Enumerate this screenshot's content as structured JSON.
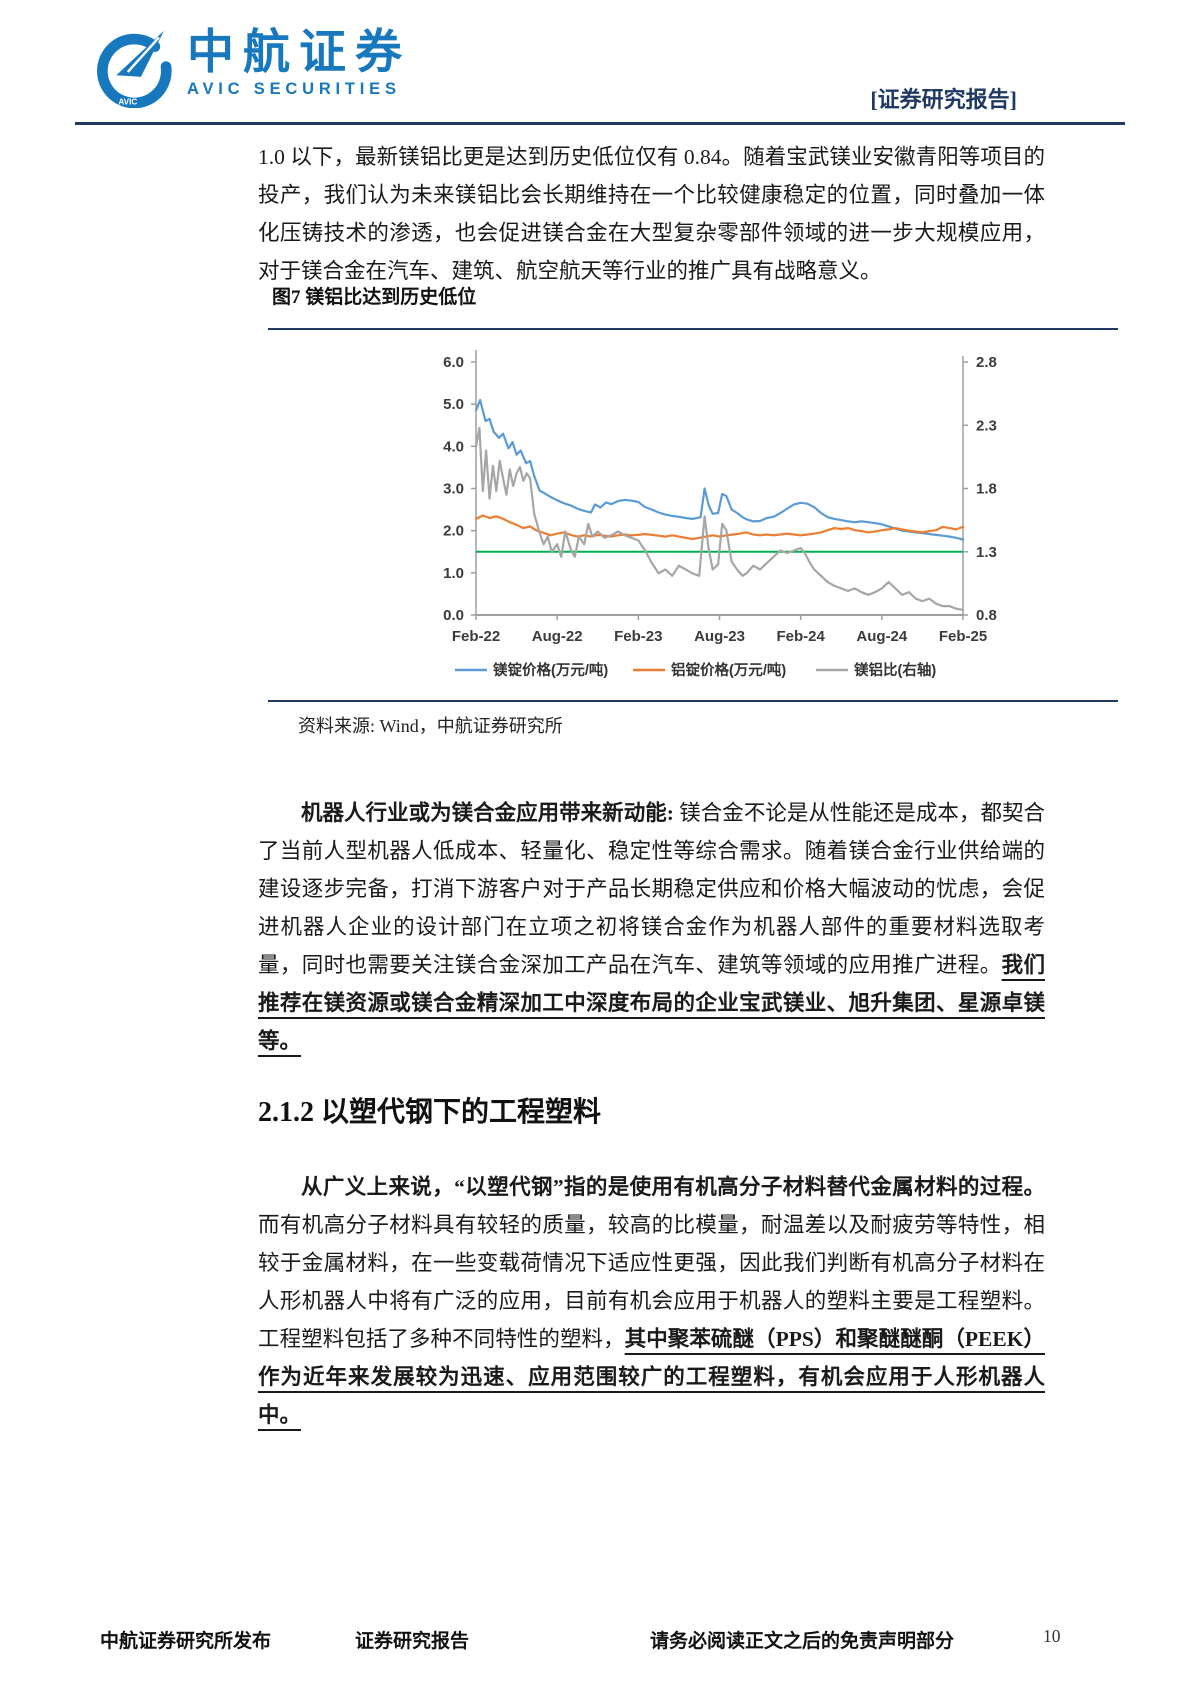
{
  "header": {
    "logo": {
      "cn": "中航证券",
      "en": "AVIC  SECURITIES",
      "badge": "AVIC"
    },
    "report_tag": "[证券研究报告]"
  },
  "colors": {
    "navy": "#1F3864",
    "logo_blue": "#1878BE"
  },
  "paragraphs": {
    "p1": "1.0 以下，最新镁铝比更是达到历史低位仅有 0.84。随着宝武镁业安徽青阳等项目的投产，我们认为未来镁铝比会长期维持在一个比较健康稳定的位置，同时叠加一体化压铸技术的渗透，也会促进镁合金在大型复杂零部件领域的进一步大规模应用，对于镁合金在汽车、建筑、航空航天等行业的推广具有战略意义。",
    "p2_bold_lead": "机器人行业或为镁合金应用带来新动能:",
    "p2_body": " 镁合金不论是从性能还是成本，都契合了当前人型机器人低成本、轻量化、稳定性等综合需求。随着镁合金行业供给端的建设逐步完备，打消下游客户对于产品长期稳定供应和价格大幅波动的忧虑，会促进机器人企业的设计部门在立项之初将镁合金作为机器人部件的重要材料选取考量，同时也需要关注镁合金深加工产品在汽车、建筑等领域的应用推广进程。",
    "p2_bold_underline": "我们推荐在镁资源或镁合金精深加工中深度布局的企业宝武镁业、旭升集团、星源卓镁等。",
    "p3_bold_lead": "从广义上来说，“以塑代钢”指的是使用有机高分子材料替代金属材料的过程。",
    "p3_body": "而有机高分子材料具有较轻的质量，较高的比模量，耐温差以及耐疲劳等特性，相较于金属材料，在一些变载荷情况下适应性更强，因此我们判断有机高分子材料在人形机器人中将有广泛的应用，目前有机会应用于机器人的塑料主要是工程塑料。工程塑料包括了多种不同特性的塑料，",
    "p3_bold_underline": "其中聚苯硫醚（PPS）和聚醚醚酮（PEEK）作为近年来发展较为迅速、应用范围较广的工程塑料，有机会应用于人形机器人中。"
  },
  "section": {
    "heading": "2.1.2 以塑代钢下的工程塑料"
  },
  "figure": {
    "caption": "图7 镁铝比达到历史低位",
    "source": "资料来源: Wind，中航证券研究所"
  },
  "chart_data": {
    "type": "line",
    "title": "图7 镁铝比达到历史低位",
    "x_tick_labels": [
      "Feb-22",
      "Aug-22",
      "Feb-23",
      "Aug-23",
      "Feb-24",
      "Aug-24",
      "Feb-25"
    ],
    "x_range_months": [
      0,
      36
    ],
    "left_axis": {
      "min": 0.0,
      "max": 6.0,
      "ticks": [
        "6.0",
        "5.0",
        "4.0",
        "3.0",
        "2.0",
        "1.0",
        "0.0"
      ]
    },
    "right_axis": {
      "min": 0.8,
      "max": 2.8,
      "ticks": [
        "2.8",
        "2.3",
        "1.8",
        "1.3",
        "0.8"
      ]
    },
    "reference_line": {
      "axis": "right",
      "value": 1.3,
      "color": "#00B050"
    },
    "grid": false,
    "legend_position": "bottom",
    "series": [
      {
        "name": "镁锭价格(万元/吨)",
        "axis": "left",
        "color": "#5B9BD5",
        "points": [
          [
            0,
            4.85
          ],
          [
            0.3,
            5.1
          ],
          [
            0.7,
            4.6
          ],
          [
            1,
            4.65
          ],
          [
            1.3,
            4.35
          ],
          [
            1.7,
            4.2
          ],
          [
            2,
            4.3
          ],
          [
            2.4,
            3.95
          ],
          [
            2.7,
            4.1
          ],
          [
            3,
            3.8
          ],
          [
            3.3,
            3.9
          ],
          [
            3.7,
            3.6
          ],
          [
            4,
            3.65
          ],
          [
            4.3,
            3.3
          ],
          [
            4.7,
            2.95
          ],
          [
            5,
            2.9
          ],
          [
            5.4,
            2.82
          ],
          [
            6,
            2.72
          ],
          [
            6.5,
            2.65
          ],
          [
            7,
            2.6
          ],
          [
            7.5,
            2.52
          ],
          [
            8,
            2.47
          ],
          [
            8.5,
            2.43
          ],
          [
            8.8,
            2.62
          ],
          [
            9.2,
            2.55
          ],
          [
            9.6,
            2.67
          ],
          [
            10,
            2.63
          ],
          [
            10.5,
            2.7
          ],
          [
            11,
            2.73
          ],
          [
            11.5,
            2.71
          ],
          [
            12,
            2.68
          ],
          [
            12.5,
            2.56
          ],
          [
            13,
            2.5
          ],
          [
            13.5,
            2.43
          ],
          [
            14,
            2.38
          ],
          [
            14.5,
            2.35
          ],
          [
            15,
            2.33
          ],
          [
            15.5,
            2.3
          ],
          [
            16,
            2.28
          ],
          [
            16.6,
            2.32
          ],
          [
            16.9,
            3.0
          ],
          [
            17.2,
            2.6
          ],
          [
            17.5,
            2.4
          ],
          [
            17.9,
            2.42
          ],
          [
            18.2,
            2.87
          ],
          [
            18.5,
            2.82
          ],
          [
            18.9,
            2.5
          ],
          [
            19.3,
            2.42
          ],
          [
            19.7,
            2.32
          ],
          [
            20,
            2.27
          ],
          [
            20.5,
            2.22
          ],
          [
            21,
            2.23
          ],
          [
            21.5,
            2.3
          ],
          [
            22,
            2.33
          ],
          [
            22.5,
            2.42
          ],
          [
            23,
            2.52
          ],
          [
            23.5,
            2.62
          ],
          [
            24,
            2.66
          ],
          [
            24.5,
            2.64
          ],
          [
            25,
            2.56
          ],
          [
            25.5,
            2.42
          ],
          [
            26,
            2.32
          ],
          [
            26.5,
            2.28
          ],
          [
            27,
            2.25
          ],
          [
            27.5,
            2.22
          ],
          [
            28,
            2.2
          ],
          [
            28.5,
            2.22
          ],
          [
            29,
            2.2
          ],
          [
            29.5,
            2.18
          ],
          [
            30,
            2.15
          ],
          [
            30.5,
            2.1
          ],
          [
            31,
            2.05
          ],
          [
            31.5,
            2.0
          ],
          [
            32,
            1.98
          ],
          [
            32.5,
            1.96
          ],
          [
            33,
            1.94
          ],
          [
            33.5,
            1.92
          ],
          [
            34,
            1.9
          ],
          [
            34.5,
            1.88
          ],
          [
            35,
            1.86
          ],
          [
            35.5,
            1.83
          ],
          [
            36,
            1.79
          ]
        ]
      },
      {
        "name": "铝锭价格(万元/吨)",
        "axis": "left",
        "color": "#ED7D31",
        "points": [
          [
            0,
            2.28
          ],
          [
            0.5,
            2.36
          ],
          [
            1,
            2.3
          ],
          [
            1.5,
            2.34
          ],
          [
            2,
            2.28
          ],
          [
            2.5,
            2.2
          ],
          [
            3,
            2.14
          ],
          [
            3.5,
            2.06
          ],
          [
            4,
            2.1
          ],
          [
            4.5,
            2.0
          ],
          [
            5,
            1.95
          ],
          [
            5.5,
            1.89
          ],
          [
            6,
            1.93
          ],
          [
            6.5,
            1.96
          ],
          [
            7,
            1.9
          ],
          [
            7.5,
            1.86
          ],
          [
            8,
            1.89
          ],
          [
            8.5,
            1.86
          ],
          [
            9,
            1.9
          ],
          [
            9.5,
            1.88
          ],
          [
            10,
            1.86
          ],
          [
            10.5,
            1.89
          ],
          [
            11,
            1.91
          ],
          [
            11.5,
            1.89
          ],
          [
            12,
            1.9
          ],
          [
            12.5,
            1.92
          ],
          [
            13,
            1.9
          ],
          [
            13.5,
            1.88
          ],
          [
            14,
            1.86
          ],
          [
            14.5,
            1.89
          ],
          [
            15,
            1.86
          ],
          [
            15.5,
            1.83
          ],
          [
            16,
            1.8
          ],
          [
            16.5,
            1.83
          ],
          [
            17,
            1.86
          ],
          [
            17.5,
            1.89
          ],
          [
            18,
            1.86
          ],
          [
            18.5,
            1.89
          ],
          [
            19,
            1.91
          ],
          [
            19.5,
            1.93
          ],
          [
            20,
            1.96
          ],
          [
            20.5,
            1.91
          ],
          [
            21,
            1.89
          ],
          [
            21.5,
            1.91
          ],
          [
            22,
            1.89
          ],
          [
            22.5,
            1.91
          ],
          [
            23,
            1.93
          ],
          [
            23.5,
            1.91
          ],
          [
            24,
            1.89
          ],
          [
            24.5,
            1.91
          ],
          [
            25,
            1.93
          ],
          [
            25.5,
            1.96
          ],
          [
            26,
            2.01
          ],
          [
            26.5,
            2.06
          ],
          [
            27,
            2.04
          ],
          [
            27.5,
            2.06
          ],
          [
            28,
            2.01
          ],
          [
            28.5,
            1.99
          ],
          [
            29,
            1.96
          ],
          [
            29.5,
            1.98
          ],
          [
            30,
            2.01
          ],
          [
            30.5,
            2.03
          ],
          [
            31,
            2.06
          ],
          [
            31.5,
            2.03
          ],
          [
            32,
            2.0
          ],
          [
            32.5,
            1.98
          ],
          [
            33,
            1.96
          ],
          [
            33.5,
            1.99
          ],
          [
            34,
            2.01
          ],
          [
            34.5,
            2.09
          ],
          [
            35,
            2.06
          ],
          [
            35.5,
            2.03
          ],
          [
            36,
            2.09
          ]
        ]
      },
      {
        "name": "镁铝比(右轴)",
        "axis": "right",
        "color": "#A6A6A6",
        "points": [
          [
            0,
            2.13
          ],
          [
            0.25,
            2.28
          ],
          [
            0.5,
            1.78
          ],
          [
            0.75,
            2.1
          ],
          [
            1,
            1.72
          ],
          [
            1.25,
            1.98
          ],
          [
            1.5,
            1.78
          ],
          [
            1.75,
            2.02
          ],
          [
            2,
            1.88
          ],
          [
            2.25,
            1.75
          ],
          [
            2.5,
            1.95
          ],
          [
            2.75,
            1.82
          ],
          [
            3,
            1.92
          ],
          [
            3.25,
            1.97
          ],
          [
            3.5,
            1.86
          ],
          [
            3.75,
            1.92
          ],
          [
            4,
            1.88
          ],
          [
            4.3,
            1.6
          ],
          [
            4.7,
            1.45
          ],
          [
            5,
            1.36
          ],
          [
            5.3,
            1.42
          ],
          [
            5.6,
            1.3
          ],
          [
            6,
            1.36
          ],
          [
            6.3,
            1.26
          ],
          [
            6.6,
            1.46
          ],
          [
            7,
            1.32
          ],
          [
            7.3,
            1.26
          ],
          [
            7.6,
            1.42
          ],
          [
            8,
            1.36
          ],
          [
            8.3,
            1.52
          ],
          [
            8.6,
            1.42
          ],
          [
            9,
            1.46
          ],
          [
            9.5,
            1.41
          ],
          [
            10,
            1.43
          ],
          [
            10.5,
            1.46
          ],
          [
            11,
            1.43
          ],
          [
            11.5,
            1.41
          ],
          [
            12,
            1.39
          ],
          [
            12.5,
            1.31
          ],
          [
            13,
            1.21
          ],
          [
            13.5,
            1.13
          ],
          [
            14,
            1.16
          ],
          [
            14.5,
            1.11
          ],
          [
            15,
            1.19
          ],
          [
            15.5,
            1.16
          ],
          [
            16,
            1.13
          ],
          [
            16.5,
            1.11
          ],
          [
            16.9,
            1.58
          ],
          [
            17.2,
            1.32
          ],
          [
            17.5,
            1.16
          ],
          [
            17.9,
            1.2
          ],
          [
            18.2,
            1.52
          ],
          [
            18.5,
            1.47
          ],
          [
            18.9,
            1.22
          ],
          [
            19.3,
            1.16
          ],
          [
            19.7,
            1.11
          ],
          [
            20,
            1.13
          ],
          [
            20.5,
            1.19
          ],
          [
            21,
            1.16
          ],
          [
            21.5,
            1.21
          ],
          [
            22,
            1.26
          ],
          [
            22.5,
            1.31
          ],
          [
            23,
            1.29
          ],
          [
            23.5,
            1.31
          ],
          [
            24,
            1.33
          ],
          [
            24.3,
            1.29
          ],
          [
            24.7,
            1.21
          ],
          [
            25,
            1.16
          ],
          [
            25.5,
            1.11
          ],
          [
            26,
            1.06
          ],
          [
            26.5,
            1.03
          ],
          [
            27,
            1.01
          ],
          [
            27.5,
            0.99
          ],
          [
            28,
            1.01
          ],
          [
            28.5,
            0.98
          ],
          [
            29,
            0.96
          ],
          [
            29.5,
            0.98
          ],
          [
            30,
            1.01
          ],
          [
            30.5,
            1.06
          ],
          [
            31,
            1.01
          ],
          [
            31.5,
            0.96
          ],
          [
            32,
            0.98
          ],
          [
            32.5,
            0.93
          ],
          [
            33,
            0.91
          ],
          [
            33.5,
            0.93
          ],
          [
            34,
            0.89
          ],
          [
            34.5,
            0.87
          ],
          [
            35,
            0.87
          ],
          [
            35.5,
            0.85
          ],
          [
            36,
            0.84
          ]
        ]
      }
    ]
  },
  "footer": {
    "publisher": "中航证券研究所发布",
    "report_type": "证券研究报告",
    "disclaimer": "请务必阅读正文之后的免责声明部分",
    "page_number": "10"
  }
}
